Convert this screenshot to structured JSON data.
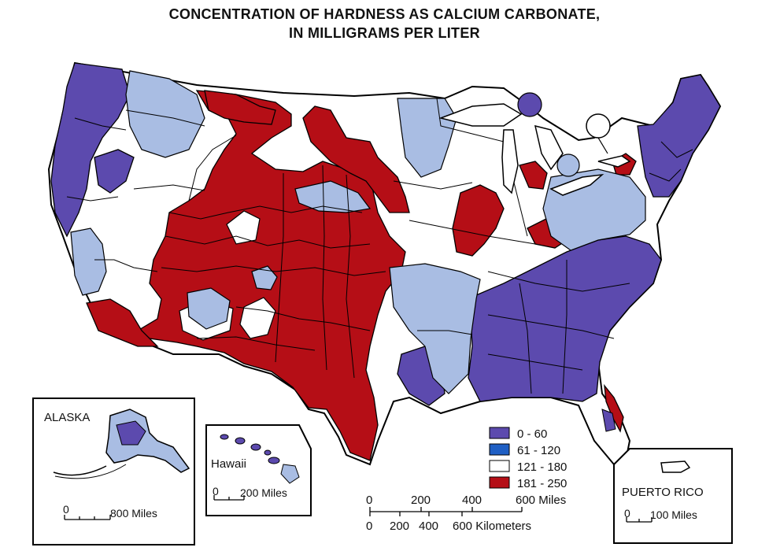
{
  "title": {
    "line1": "CONCENTRATION OF HARDNESS AS CALCIUM CARBONATE,",
    "line2": "IN MILLIGRAMS PER LITER"
  },
  "legend": {
    "items": [
      {
        "label": "0 - 60",
        "color": "#5c4aae"
      },
      {
        "label": "61 - 120",
        "color": "#1f5fc4"
      },
      {
        "label": "121 - 180",
        "color": "#ffffff"
      },
      {
        "label": "181 - 250",
        "color": "#b50e16"
      }
    ]
  },
  "colors": {
    "soft": "#5c4aae",
    "moderate": "#1f5fc4",
    "moderately_hard": "#ffffff",
    "hard": "#b50e16",
    "light_blue": "#a9bde3",
    "outline": "#000000"
  },
  "scale_main": {
    "miles_ticks": [
      "0",
      "200",
      "400",
      "600 Miles"
    ],
    "km_ticks": [
      "0",
      "200",
      "400",
      "600 Kilometers"
    ]
  },
  "inset_alaska": {
    "name": "ALASKA",
    "scale_start": "0",
    "scale_end": "800 Miles"
  },
  "inset_hawaii": {
    "name": "Hawaii",
    "scale_start": "0",
    "scale_end": "200 Miles"
  },
  "inset_puerto_rico": {
    "name": "PUERTO RICO",
    "scale_start": "0",
    "scale_end": "100 Miles"
  }
}
